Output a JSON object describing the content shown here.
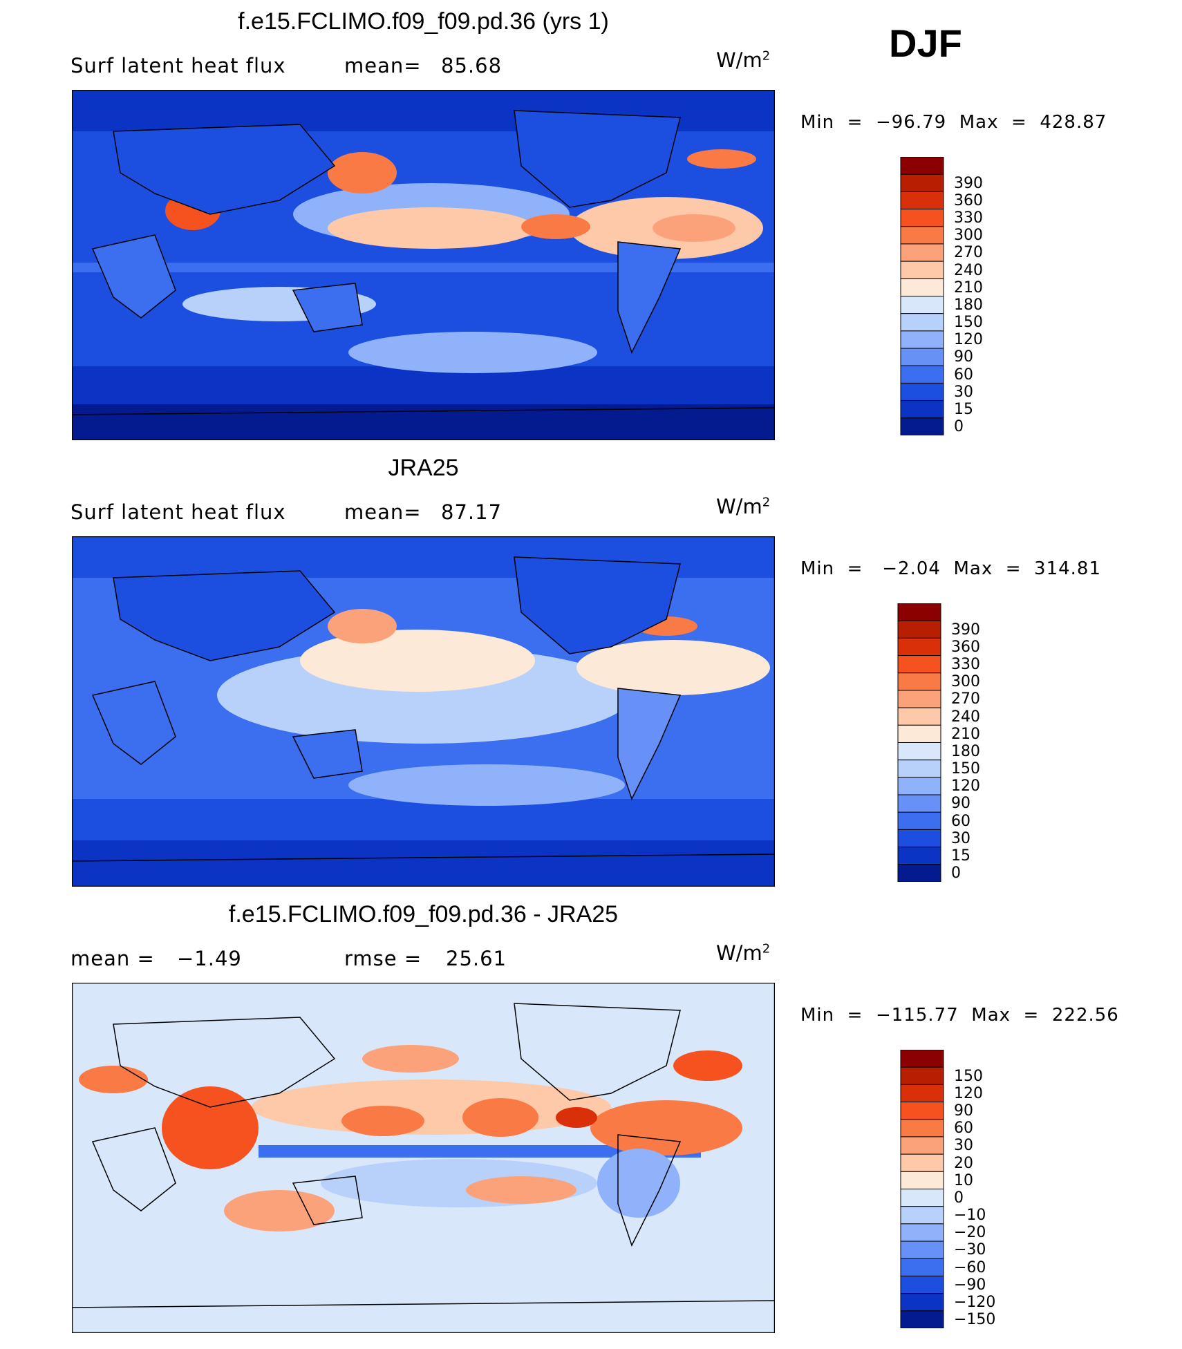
{
  "season": "DJF",
  "chart_data": [
    {
      "type": "heatmap",
      "title": "f.e15.FCLIMO.f09_f09.pd.36 (yrs 1)",
      "left_label": "Surf latent heat flux",
      "mean_label": "mean=",
      "mean_value": "85.68",
      "units": "W/m",
      "units_sup": "2",
      "min_label": "Min  =  −96.79  Max  =  428.87",
      "levels": [
        "390",
        "360",
        "330",
        "300",
        "270",
        "240",
        "210",
        "180",
        "150",
        "120",
        "90",
        "60",
        "30",
        "15",
        "0"
      ],
      "colors": [
        "#8b0000",
        "#b81e00",
        "#d9300a",
        "#f5521f",
        "#fa7a45",
        "#fca27a",
        "#fdc9a8",
        "#fde9d8",
        "#d8e8fa",
        "#b8d1fb",
        "#8fb2fb",
        "#6791f7",
        "#3c6ef0",
        "#1c4fe0",
        "#0b33c4",
        "#041a8f"
      ]
    },
    {
      "type": "heatmap",
      "title": "JRA25",
      "left_label": "Surf latent heat flux",
      "mean_label": "mean=",
      "mean_value": "87.17",
      "units": "W/m",
      "units_sup": "2",
      "min_label": "Min  =   −2.04  Max  =  314.81",
      "levels": [
        "390",
        "360",
        "330",
        "300",
        "270",
        "240",
        "210",
        "180",
        "150",
        "120",
        "90",
        "60",
        "30",
        "15",
        "0"
      ],
      "colors": [
        "#8b0000",
        "#b81e00",
        "#d9300a",
        "#f5521f",
        "#fa7a45",
        "#fca27a",
        "#fdc9a8",
        "#fde9d8",
        "#d8e8fa",
        "#b8d1fb",
        "#8fb2fb",
        "#6791f7",
        "#3c6ef0",
        "#1c4fe0",
        "#0b33c4",
        "#041a8f"
      ]
    },
    {
      "type": "heatmap",
      "title": "f.e15.FCLIMO.f09_f09.pd.36 - JRA25",
      "left_label": "mean  =",
      "left_value": "−1.49",
      "mean_label": "rmse  =",
      "mean_value": "25.61",
      "units": "W/m",
      "units_sup": "2",
      "min_label": "Min  =  −115.77  Max  =  222.56",
      "levels": [
        "150",
        "120",
        "90",
        "60",
        "30",
        "20",
        "10",
        "0",
        "−10",
        "−20",
        "−30",
        "−60",
        "−90",
        "−120",
        "−150"
      ],
      "colors": [
        "#8b0000",
        "#b81e00",
        "#d9300a",
        "#f5521f",
        "#fa7a45",
        "#fca27a",
        "#fdc9a8",
        "#fde9d8",
        "#d8e8fa",
        "#b8d1fb",
        "#8fb2fb",
        "#6791f7",
        "#3c6ef0",
        "#1c4fe0",
        "#0b33c4",
        "#041a8f"
      ]
    }
  ]
}
